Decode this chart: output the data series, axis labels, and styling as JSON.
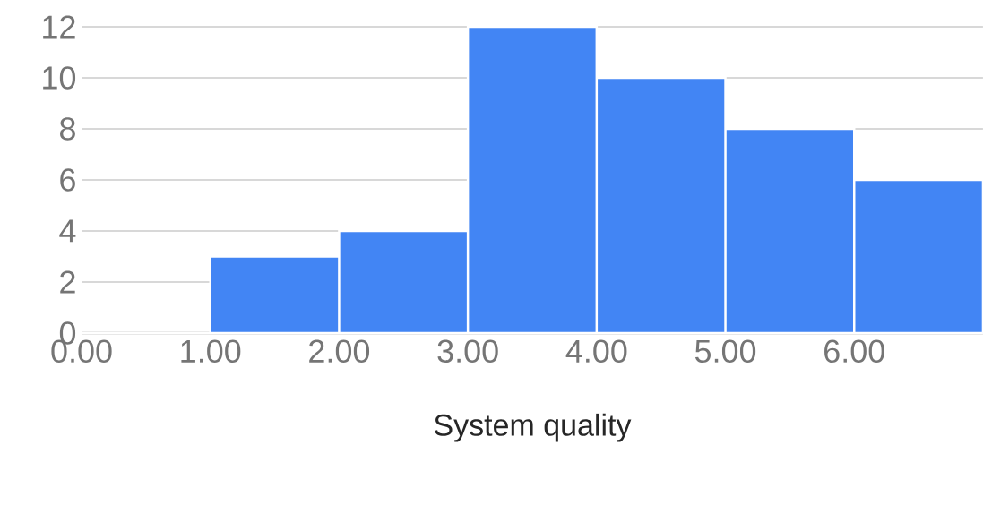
{
  "chart_data": {
    "type": "histogram",
    "xlabel": "System quality",
    "bins": [
      0,
      1,
      2,
      3,
      4,
      5,
      6,
      7
    ],
    "values": [
      0,
      3,
      4,
      12,
      10,
      8,
      6
    ],
    "color": "#4285f4",
    "xlim": [
      0,
      7
    ],
    "ylim": [
      0,
      12
    ],
    "xticks": [
      {
        "value": 0,
        "label": "0.00"
      },
      {
        "value": 1,
        "label": "1.00"
      },
      {
        "value": 2,
        "label": "2.00"
      },
      {
        "value": 3,
        "label": "3.00"
      },
      {
        "value": 4,
        "label": "4.00"
      },
      {
        "value": 5,
        "label": "5.00"
      },
      {
        "value": 6,
        "label": "6.00"
      }
    ],
    "yticks": [
      0,
      2,
      4,
      6,
      8,
      10,
      12
    ],
    "grid": "y"
  }
}
